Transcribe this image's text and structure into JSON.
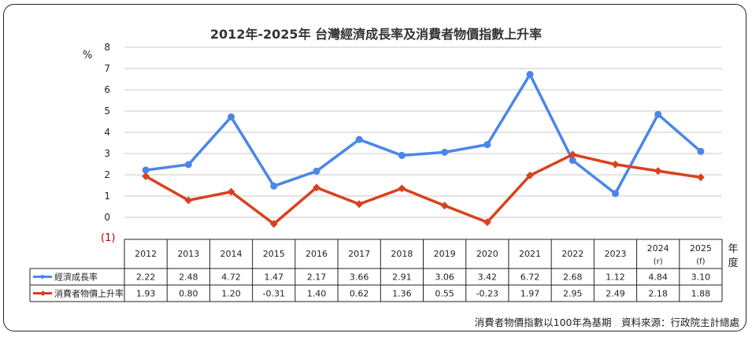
{
  "chart_data": {
    "type": "line",
    "title": "2012年-2025年 台灣經濟成長率及消費者物價指數上升率",
    "ylabel": "%",
    "y_negative_label": "(1)",
    "xlabel": "年度",
    "ylim": [
      -1,
      8
    ],
    "yticks": [
      0,
      1,
      2,
      3,
      4,
      5,
      6,
      7,
      8
    ],
    "grid": true,
    "categories": [
      "2012",
      "2013",
      "2014",
      "2015",
      "2016",
      "2017",
      "2018",
      "2019",
      "2020",
      "2021",
      "2022",
      "2023",
      "2024",
      "2025"
    ],
    "category_notes": [
      "",
      "",
      "",
      "",
      "",
      "",
      "",
      "",
      "",
      "",
      "",
      "",
      "(r)",
      "(f)"
    ],
    "series": [
      {
        "name": "經濟成長率",
        "color": "#4a86e8",
        "marker": "circle",
        "values": [
          2.22,
          2.48,
          4.72,
          1.47,
          2.17,
          3.66,
          2.91,
          3.06,
          3.42,
          6.72,
          2.68,
          1.12,
          4.84,
          3.1
        ],
        "labels": [
          "2.22",
          "2.48",
          "4.72",
          "1.47",
          "2.17",
          "3.66",
          "2.91",
          "3.06",
          "3.42",
          "6.72",
          "2.68",
          "1.12",
          "4.84",
          "3.10"
        ]
      },
      {
        "name": "消費者物價上升率",
        "color": "#d9411e",
        "marker": "diamond",
        "values": [
          1.93,
          0.8,
          1.2,
          -0.31,
          1.4,
          0.62,
          1.36,
          0.55,
          -0.23,
          1.97,
          2.95,
          2.49,
          2.18,
          1.88
        ],
        "labels": [
          "1.93",
          "0.80",
          "1.20",
          "-0.31",
          "1.40",
          "0.62",
          "1.36",
          "0.55",
          "-0.23",
          "1.97",
          "2.95",
          "2.49",
          "2.18",
          "1.88"
        ]
      }
    ],
    "footnote": "消費者物價指數以100年為基期　資料來源：行政院主計總處"
  }
}
